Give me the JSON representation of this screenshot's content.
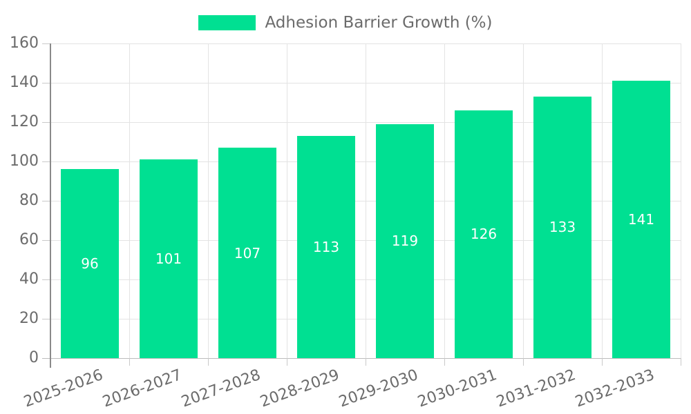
{
  "colors": {
    "bar": "#00E092",
    "gridline": "#e3e3e3",
    "zero_line": "#bcbcbc",
    "tick": "#c9c9c9",
    "axis_line": "#8a8a8a",
    "axis_text": "#6b6b6b",
    "data_label": "#ffffff",
    "background": "#ffffff"
  },
  "chart_data": {
    "type": "bar",
    "title": "Adhesion Barrier Growth (%)",
    "categories": [
      "2025-2026",
      "2026-2027",
      "2027-2028",
      "2028-2029",
      "2029-2030",
      "2030-2031",
      "2031-2032",
      "2032-2033"
    ],
    "values": [
      96,
      101,
      107,
      113,
      119,
      126,
      133,
      141
    ],
    "xlabel": "",
    "ylabel": "",
    "ylim": [
      0,
      160
    ],
    "ytick_step": 20,
    "ytick_labels": [
      "0",
      "20",
      "40",
      "60",
      "80",
      "100",
      "120",
      "140",
      "160"
    ],
    "grid": true,
    "legend_position": "top",
    "x_tick_rotation_deg": -20,
    "data_label_position": "center"
  }
}
